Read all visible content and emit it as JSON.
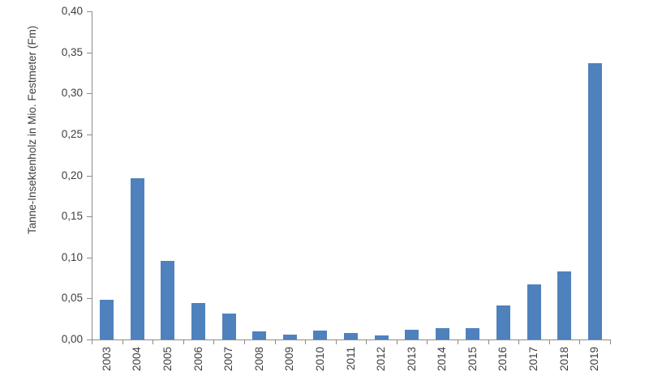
{
  "chart_data": {
    "type": "bar",
    "title": "",
    "xlabel": "",
    "ylabel": "Tanne-Insektenholz in Mio. Festmeter (Fm)",
    "categories": [
      "2003",
      "2004",
      "2005",
      "2006",
      "2007",
      "2008",
      "2009",
      "2010",
      "2011",
      "2012",
      "2013",
      "2014",
      "2015",
      "2016",
      "2017",
      "2018",
      "2019"
    ],
    "values": [
      0.048,
      0.197,
      0.096,
      0.044,
      0.032,
      0.01,
      0.006,
      0.011,
      0.008,
      0.005,
      0.012,
      0.014,
      0.014,
      0.041,
      0.067,
      0.083,
      0.337
    ],
    "ylim": [
      0,
      0.4
    ],
    "ytick_step": 0.05,
    "ytick_labels": [
      "0,00",
      "0,05",
      "0,10",
      "0,15",
      "0,20",
      "0,25",
      "0,30",
      "0,35",
      "0,40"
    ],
    "decimal_separator": ",",
    "grid": false,
    "legend": false,
    "x_labels_rotated_degrees": 90,
    "colors": {
      "bar": "#4F81BD",
      "axis": "#8C8C8C",
      "text": "#3F3F3F",
      "background": "#FFFFFF"
    }
  }
}
